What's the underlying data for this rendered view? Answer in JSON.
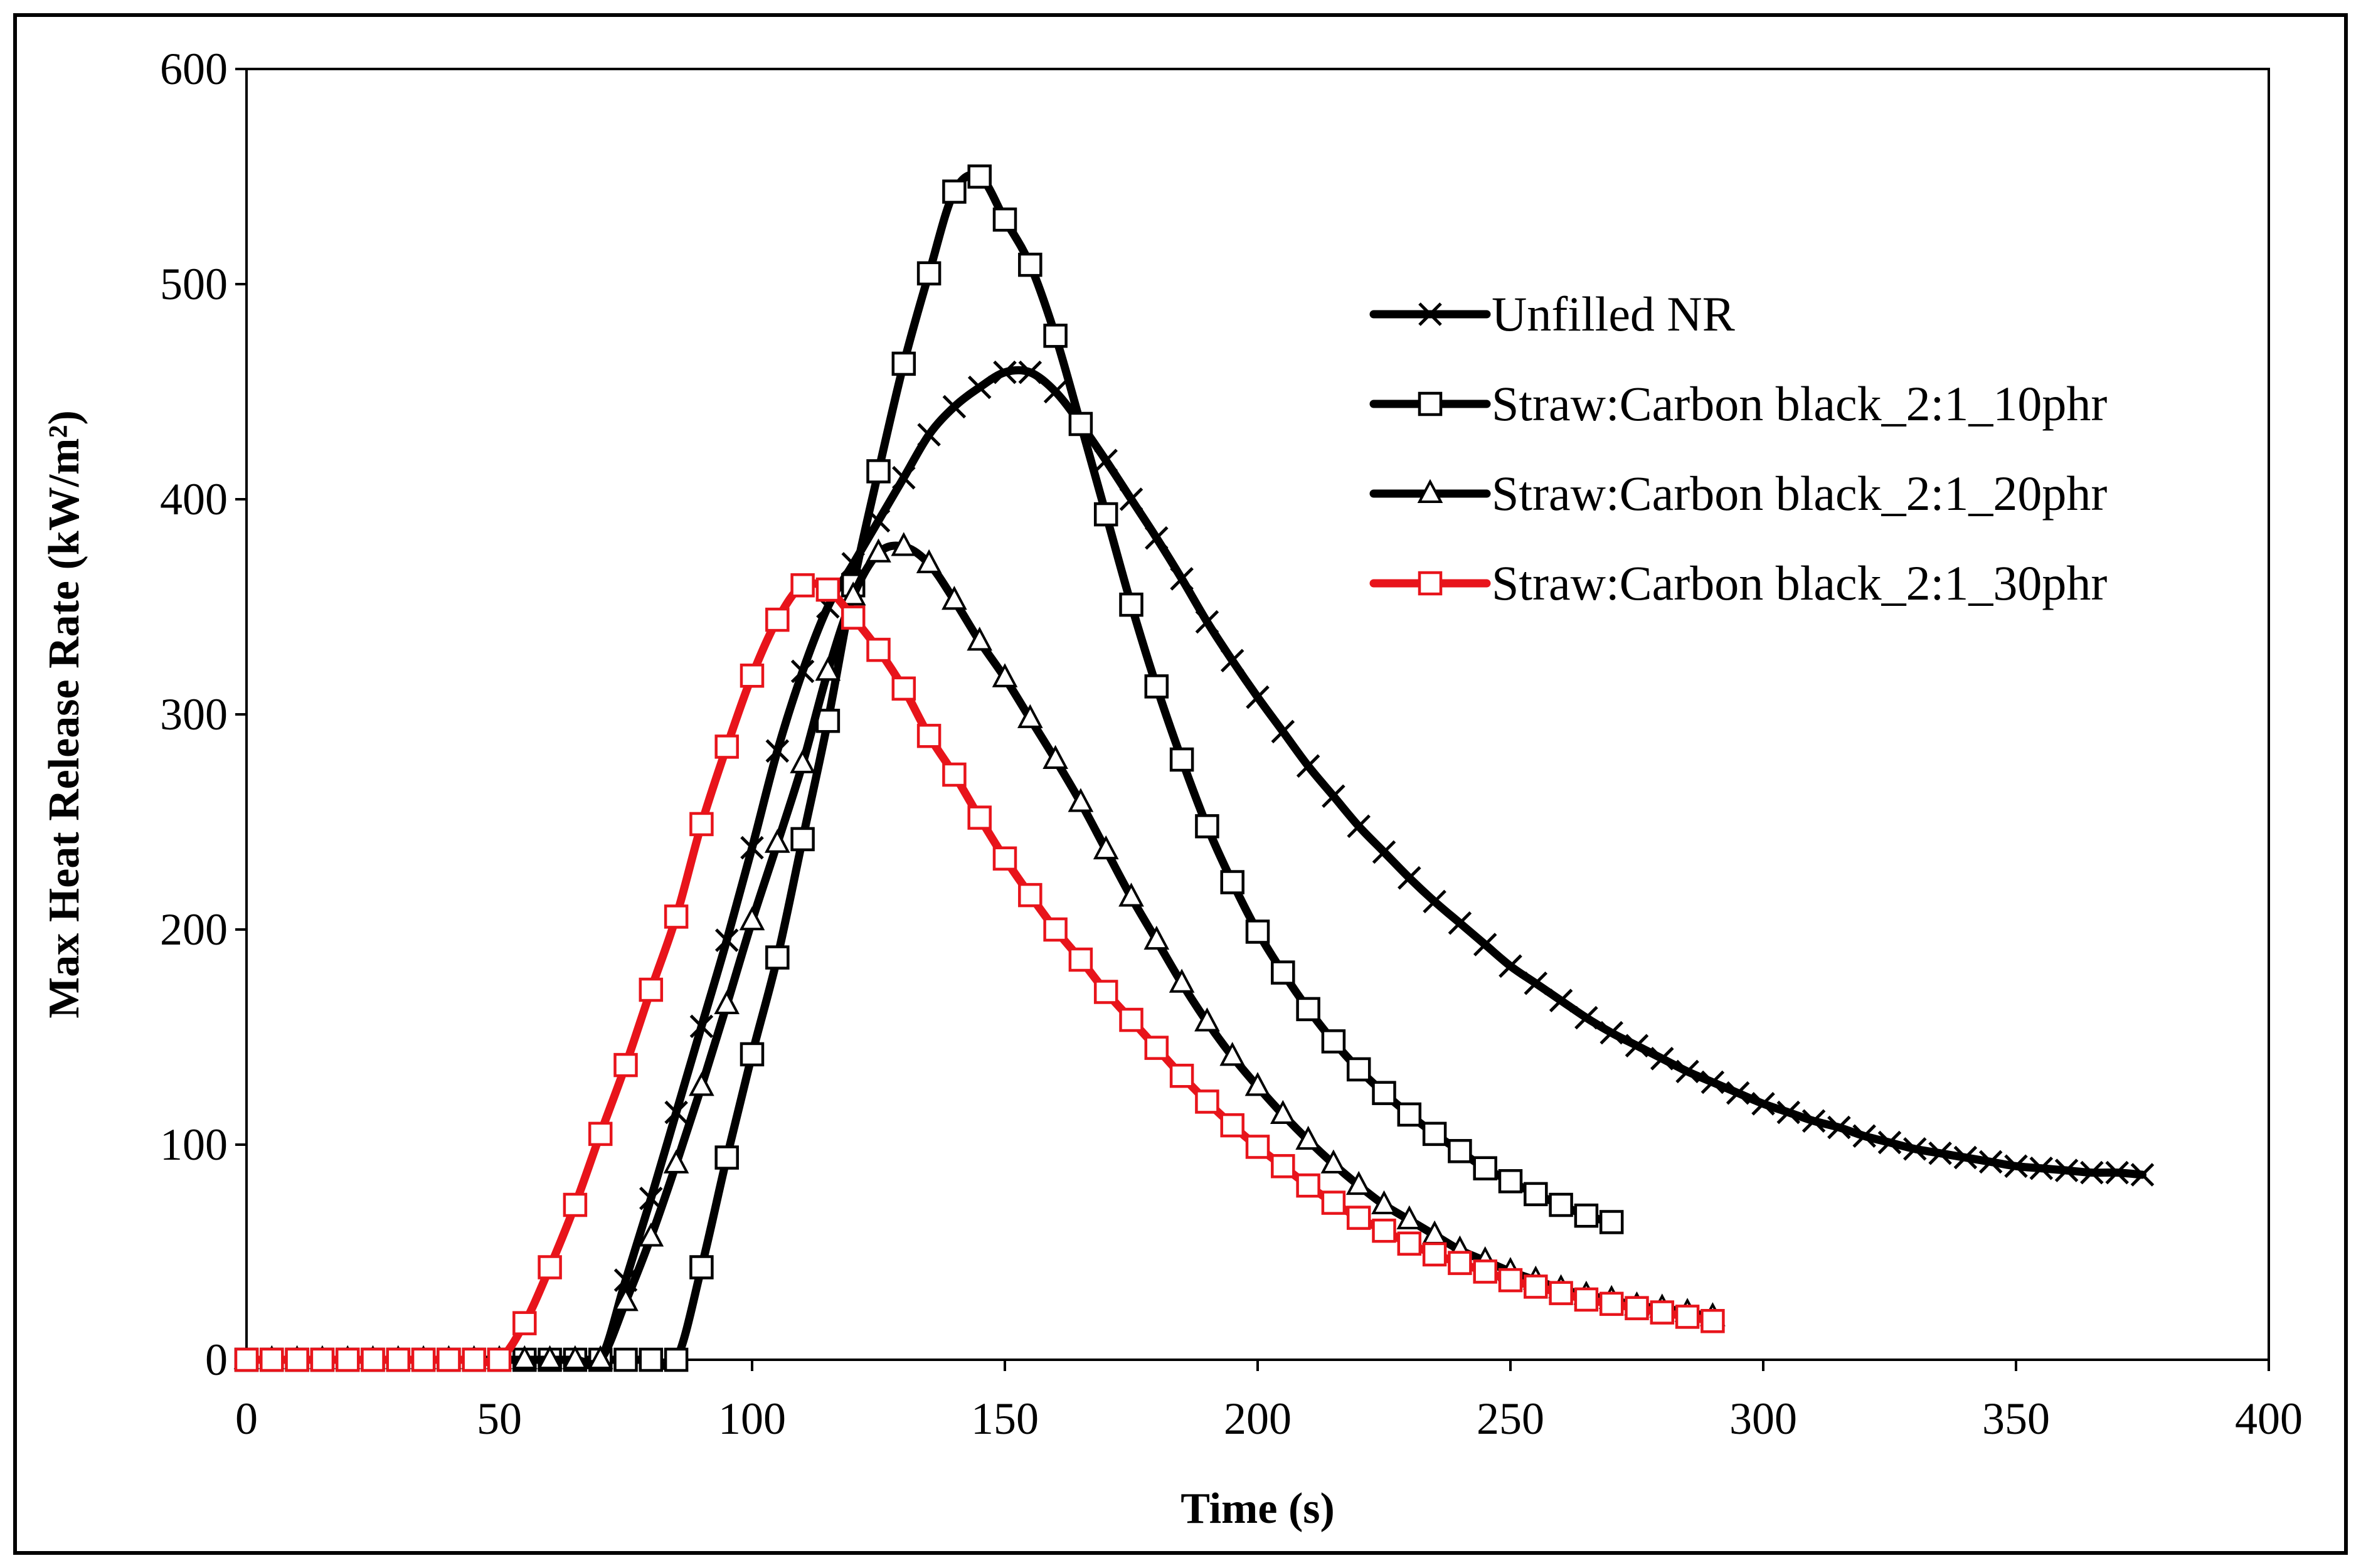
{
  "chart_data": {
    "type": "line",
    "title": "",
    "xlabel": "Time (s)",
    "ylabel": "Max Heat Release Rate (kW/m²)",
    "xlim": [
      0,
      400
    ],
    "ylim": [
      0,
      600
    ],
    "xticks": [
      0,
      50,
      100,
      150,
      200,
      250,
      300,
      350,
      400
    ],
    "yticks": [
      0,
      100,
      200,
      300,
      400,
      500,
      600
    ],
    "grid": false,
    "legend_position": "top-right",
    "series": [
      {
        "name": "Unfilled NR",
        "color": "#000000",
        "marker": "x",
        "x": [
          0,
          5,
          10,
          15,
          20,
          25,
          30,
          35,
          40,
          45,
          50,
          55,
          60,
          65,
          70,
          75,
          80,
          85,
          90,
          95,
          100,
          105,
          110,
          115,
          120,
          125,
          130,
          135,
          140,
          145,
          150,
          155,
          160,
          165,
          170,
          175,
          180,
          185,
          190,
          195,
          200,
          205,
          210,
          215,
          220,
          225,
          230,
          235,
          240,
          245,
          250,
          255,
          260,
          265,
          270,
          275,
          280,
          285,
          290,
          295,
          300,
          305,
          310,
          315,
          320,
          325,
          330,
          335,
          340,
          345,
          350,
          355,
          360,
          365,
          370,
          375
        ],
        "values": [
          0,
          0,
          0,
          0,
          0,
          0,
          0,
          0,
          0,
          0,
          0,
          0,
          0,
          0,
          0,
          37,
          75,
          115,
          155,
          195,
          238,
          283,
          320,
          350,
          370,
          390,
          410,
          430,
          443,
          452,
          459,
          459,
          450,
          435,
          418,
          400,
          382,
          363,
          343,
          325,
          308,
          292,
          276,
          262,
          248,
          236,
          224,
          213,
          203,
          193,
          183,
          175,
          167,
          159,
          152,
          146,
          140,
          134,
          129,
          124,
          119,
          115,
          111,
          108,
          104,
          101,
          98,
          96,
          94,
          92,
          90,
          89,
          88,
          87,
          87,
          86
        ]
      },
      {
        "name": "Straw:Carbon black_2:1_10phr",
        "color": "#000000",
        "marker": "square",
        "x": [
          0,
          5,
          10,
          15,
          20,
          25,
          30,
          35,
          40,
          45,
          50,
          55,
          60,
          65,
          70,
          75,
          80,
          85,
          90,
          95,
          100,
          105,
          110,
          115,
          120,
          125,
          130,
          135,
          140,
          145,
          150,
          155,
          160,
          165,
          170,
          175,
          180,
          185,
          190,
          195,
          200,
          205,
          210,
          215,
          220,
          225,
          230,
          235,
          240,
          245,
          250,
          255,
          260,
          265,
          270
        ],
        "values": [
          0,
          0,
          0,
          0,
          0,
          0,
          0,
          0,
          0,
          0,
          0,
          0,
          0,
          0,
          0,
          0,
          0,
          0,
          43,
          94,
          142,
          187,
          242,
          297,
          360,
          413,
          463,
          505,
          543,
          550,
          530,
          509,
          476,
          435,
          393,
          351,
          313,
          279,
          248,
          222,
          199,
          180,
          163,
          148,
          135,
          124,
          114,
          105,
          97,
          89,
          83,
          77,
          72,
          67,
          64
        ]
      },
      {
        "name": "Straw:Carbon black_2:1_20phr",
        "color": "#000000",
        "marker": "triangle",
        "x": [
          0,
          5,
          10,
          15,
          20,
          25,
          30,
          35,
          40,
          45,
          50,
          55,
          60,
          65,
          70,
          75,
          80,
          85,
          90,
          95,
          100,
          105,
          110,
          115,
          120,
          125,
          130,
          135,
          140,
          145,
          150,
          155,
          160,
          165,
          170,
          175,
          180,
          185,
          190,
          195,
          200,
          205,
          210,
          215,
          220,
          225,
          230,
          235,
          240,
          245,
          250,
          255,
          260,
          265,
          270,
          275,
          280,
          285,
          290
        ],
        "values": [
          0,
          0,
          0,
          0,
          0,
          0,
          0,
          0,
          0,
          0,
          0,
          0,
          0,
          0,
          0,
          27,
          57,
          91,
          127,
          165,
          204,
          240,
          277,
          320,
          355,
          375,
          378,
          370,
          353,
          334,
          317,
          298,
          279,
          259,
          237,
          215,
          195,
          175,
          157,
          141,
          127,
          114,
          102,
          91,
          81,
          72,
          65,
          58,
          51,
          46,
          41,
          37,
          33,
          30,
          28,
          25,
          24,
          22,
          20
        ]
      },
      {
        "name": "Straw:Carbon black_2:1_30phr",
        "color": "#e8141b",
        "marker": "square",
        "x": [
          0,
          5,
          10,
          15,
          20,
          25,
          30,
          35,
          40,
          45,
          50,
          55,
          60,
          65,
          70,
          75,
          80,
          85,
          90,
          95,
          100,
          105,
          110,
          115,
          120,
          125,
          130,
          135,
          140,
          145,
          150,
          155,
          160,
          165,
          170,
          175,
          180,
          185,
          190,
          195,
          200,
          205,
          210,
          215,
          220,
          225,
          230,
          235,
          240,
          245,
          250,
          255,
          260,
          265,
          270,
          275,
          280,
          285,
          290
        ],
        "values": [
          0,
          0,
          0,
          0,
          0,
          0,
          0,
          0,
          0,
          0,
          0,
          17,
          43,
          72,
          105,
          137,
          172,
          206,
          249,
          285,
          318,
          344,
          360,
          358,
          345,
          330,
          312,
          290,
          272,
          252,
          233,
          216,
          200,
          186,
          171,
          158,
          145,
          132,
          120,
          109,
          99,
          90,
          81,
          73,
          66,
          60,
          54,
          49,
          45,
          41,
          37,
          34,
          31,
          28,
          26,
          24,
          22,
          20,
          18
        ]
      }
    ]
  }
}
